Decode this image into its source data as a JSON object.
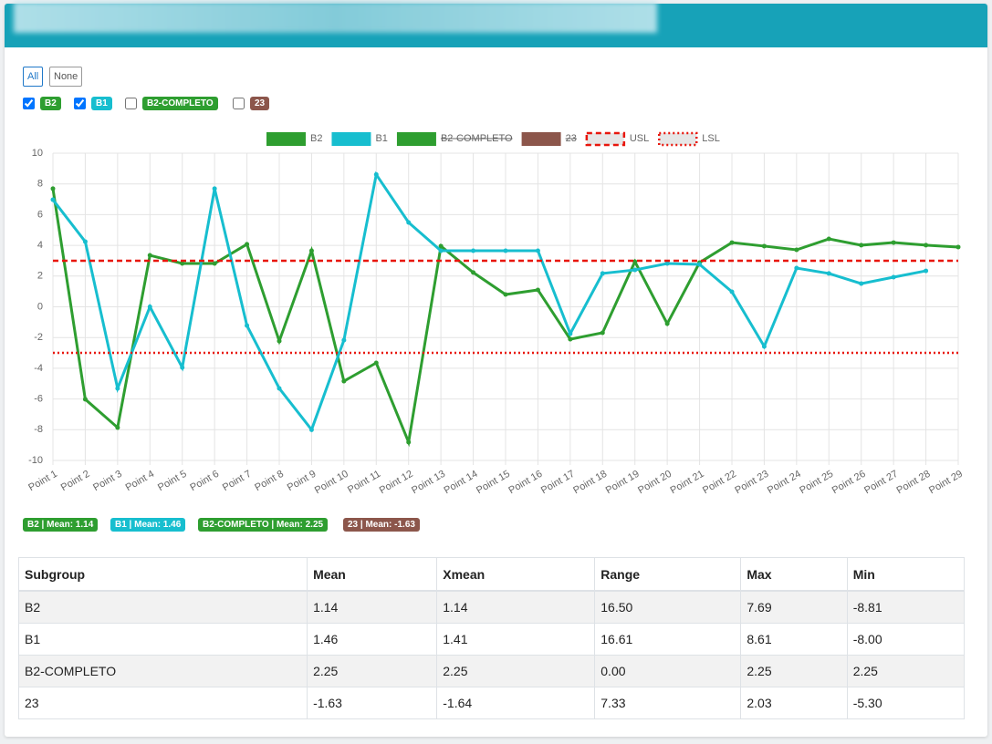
{
  "controls": {
    "buttons": [
      "All",
      "None"
    ],
    "filters": [
      {
        "label": "B2",
        "checked": true,
        "color": "#2e9e30"
      },
      {
        "label": "B1",
        "checked": true,
        "color": "#17becf"
      },
      {
        "label": "B2-COMPLETO",
        "checked": false,
        "color": "#2e9e30"
      },
      {
        "label": "23",
        "checked": false,
        "color": "#8c564b"
      }
    ]
  },
  "chart_data": {
    "type": "line",
    "categories": [
      "Point 1",
      "Point 2",
      "Point 3",
      "Point 4",
      "Point 5",
      "Point 6",
      "Point 7",
      "Point 8",
      "Point 9",
      "Point 10",
      "Point 11",
      "Point 12",
      "Point 13",
      "Point 14",
      "Point 15",
      "Point 16",
      "Point 17",
      "Point 18",
      "Point 19",
      "Point 20",
      "Point 21",
      "Point 22",
      "Point 23",
      "Point 24",
      "Point 25",
      "Point 26",
      "Point 27",
      "Point 28",
      "Point 29"
    ],
    "series": [
      {
        "name": "B2",
        "color": "#2e9e30",
        "hidden": false,
        "values": [
          7.69,
          -6.02,
          -7.86,
          3.35,
          2.82,
          2.82,
          4.07,
          -2.23,
          3.65,
          -4.84,
          -3.65,
          -8.81,
          3.95,
          2.23,
          0.8,
          1.1,
          -2.11,
          -1.69,
          2.94,
          -1.1,
          2.88,
          4.18,
          3.95,
          3.71,
          4.42,
          4.01,
          4.18,
          4.01,
          3.89
        ]
      },
      {
        "name": "B1",
        "color": "#17becf",
        "hidden": false,
        "values": [
          6.97,
          4.24,
          -5.31,
          0,
          -3.95,
          7.69,
          -1.22,
          -5.31,
          -8.0,
          -2.17,
          8.61,
          5.49,
          3.65,
          3.65,
          3.65,
          3.65,
          -1.75,
          2.17,
          2.4,
          2.82,
          2.76,
          0.98,
          -2.58,
          2.52,
          2.17,
          1.51,
          1.93,
          2.34,
          null
        ]
      },
      {
        "name": "B2-COMPLETO",
        "color": "#2e9e30",
        "hidden": true
      },
      {
        "name": "23",
        "color": "#8c564b",
        "hidden": true
      }
    ],
    "limits": [
      {
        "name": "USL",
        "value": 3,
        "color": "#e8160c",
        "dash": "6 4"
      },
      {
        "name": "LSL",
        "value": -3,
        "color": "#e8160c",
        "dash": "2 3"
      }
    ],
    "ylim": [
      -10,
      10
    ],
    "yticks": [
      -10,
      -8,
      -6,
      -4,
      -2,
      0,
      2,
      4,
      6,
      8,
      10
    ],
    "grid": true
  },
  "badges": [
    "B2 | Mean: 1.14",
    "B1 | Mean: 1.46",
    "B2-COMPLETO | Mean: 2.25",
    "23 | Mean: -1.63"
  ],
  "table": {
    "header": [
      "Subgroup",
      "Mean",
      "Xmean",
      "Range",
      "Max",
      "Min"
    ],
    "rows": [
      [
        "B2",
        "1.14",
        "1.14",
        "16.50",
        "7.69",
        "-8.81"
      ],
      [
        "B1",
        "1.46",
        "1.41",
        "16.61",
        "8.61",
        "-8.00"
      ],
      [
        "B2-COMPLETO",
        "2.25",
        "2.25",
        "0.00",
        "2.25",
        "2.25"
      ],
      [
        "23",
        "-1.63",
        "-1.64",
        "7.33",
        "2.03",
        "-5.30"
      ]
    ]
  }
}
